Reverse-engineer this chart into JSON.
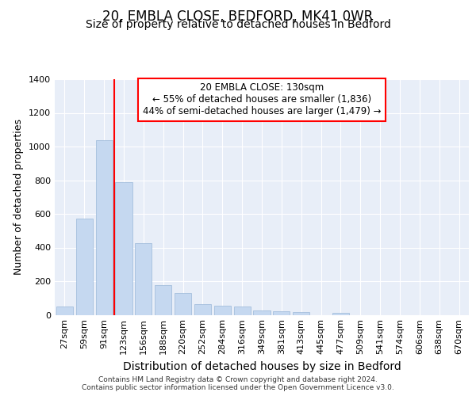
{
  "title": "20, EMBLA CLOSE, BEDFORD, MK41 0WR",
  "subtitle": "Size of property relative to detached houses in Bedford",
  "xlabel": "Distribution of detached houses by size in Bedford",
  "ylabel": "Number of detached properties",
  "categories": [
    "27sqm",
    "59sqm",
    "91sqm",
    "123sqm",
    "156sqm",
    "188sqm",
    "220sqm",
    "252sqm",
    "284sqm",
    "316sqm",
    "349sqm",
    "381sqm",
    "413sqm",
    "445sqm",
    "477sqm",
    "509sqm",
    "541sqm",
    "574sqm",
    "606sqm",
    "638sqm",
    "670sqm"
  ],
  "values": [
    48,
    570,
    1040,
    790,
    425,
    178,
    128,
    65,
    52,
    50,
    25,
    22,
    18,
    0,
    12,
    0,
    0,
    0,
    0,
    0,
    0
  ],
  "bar_color": "#c5d8f0",
  "bar_edge_color": "#9ab8d8",
  "vline_color": "red",
  "vline_x": 2.5,
  "annotation_line1": "20 EMBLA CLOSE: 130sqm",
  "annotation_line2": "← 55% of detached houses are smaller (1,836)",
  "annotation_line3": "44% of semi-detached houses are larger (1,479) →",
  "annotation_box_facecolor": "white",
  "annotation_box_edgecolor": "red",
  "ylim_max": 1400,
  "yticks": [
    0,
    200,
    400,
    600,
    800,
    1000,
    1200,
    1400
  ],
  "plot_bg_color": "#e8eef8",
  "footer_line1": "Contains HM Land Registry data © Crown copyright and database right 2024.",
  "footer_line2": "Contains public sector information licensed under the Open Government Licence v3.0.",
  "title_fontsize": 12,
  "subtitle_fontsize": 10,
  "xlabel_fontsize": 10,
  "ylabel_fontsize": 9,
  "tick_fontsize": 8,
  "annot_fontsize": 8.5,
  "footer_fontsize": 6.5
}
